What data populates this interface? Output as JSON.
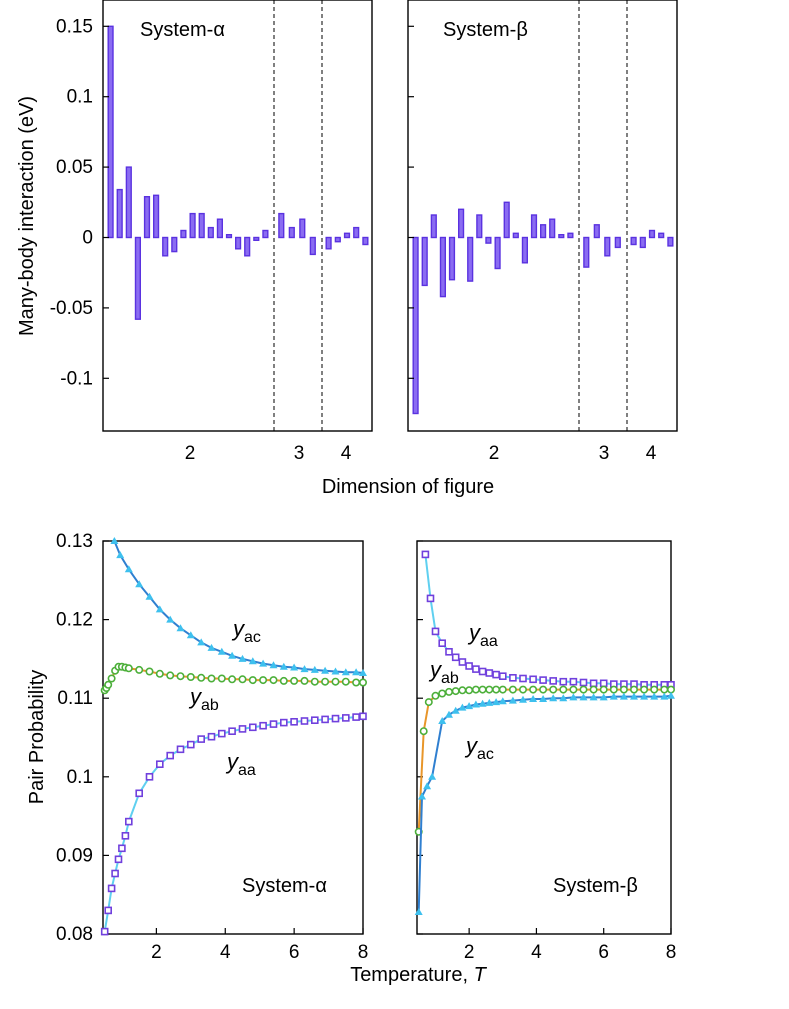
{
  "chart_data": [
    {
      "type": "bar",
      "panel": "System-α",
      "label": "System-α",
      "ylabel": "Many-body interaction (eV)",
      "xlabel": "Dimension of figure",
      "ylim": [
        -0.14,
        0.17
      ],
      "yticks": [
        "0.15",
        "0.1",
        "0.05",
        "0",
        "-0.05",
        "-0.1"
      ],
      "yticks_values": [
        0.15,
        0.1,
        0.05,
        0,
        -0.05,
        -0.1
      ],
      "xticks": [
        "2",
        "3",
        "4"
      ],
      "groups": [
        {
          "label": "2",
          "values": [
            0.15,
            0.034,
            0.05,
            -0.058,
            0.029,
            0.03,
            -0.013,
            -0.01,
            0.005,
            0.017,
            0.017,
            0.007,
            0.013,
            0.002,
            -0.008,
            -0.013,
            -0.002,
            0.005
          ]
        },
        {
          "label": "3",
          "values": [
            0.017,
            0.007,
            0.013,
            -0.012
          ]
        },
        {
          "label": "4",
          "values": [
            -0.008,
            -0.003,
            0.003,
            0.007,
            -0.005
          ]
        }
      ]
    },
    {
      "type": "bar",
      "panel": "System-β",
      "label": "System-β",
      "ylim": [
        -0.14,
        0.17
      ],
      "xticks": [
        "2",
        "3",
        "4"
      ],
      "groups": [
        {
          "label": "2",
          "values": [
            -0.125,
            -0.034,
            0.016,
            -0.042,
            -0.03,
            0.02,
            -0.031,
            0.016,
            -0.004,
            -0.022,
            0.025,
            0.003,
            -0.018,
            0.016,
            0.009,
            0.013,
            0.002,
            0.003
          ]
        },
        {
          "label": "3",
          "values": [
            -0.021,
            0.009,
            -0.013,
            -0.007
          ]
        },
        {
          "label": "4",
          "values": [
            -0.005,
            -0.007,
            0.005,
            0.003,
            -0.006
          ]
        }
      ]
    },
    {
      "type": "line",
      "panel": "System-α",
      "label": "System-α",
      "ylabel": "Pair Probability",
      "xlabel": "Temperature, ",
      "xlabel_var": "T",
      "xlim": [
        0.45,
        8.0
      ],
      "ylim": [
        0.08,
        0.13
      ],
      "yticks": [
        "0.13",
        "0.12",
        "0.11",
        "0.1",
        "0.09",
        "0.08"
      ],
      "yticks_values": [
        0.13,
        0.12,
        0.11,
        0.1,
        0.09,
        0.08
      ],
      "xticks": [
        "2",
        "4",
        "6",
        "8"
      ],
      "xticks_values": [
        2,
        4,
        6,
        8
      ],
      "series": [
        {
          "name": "y_ac",
          "sym": "y",
          "sub": "ac",
          "line_color": "#2f7fd0",
          "marker": "triangle",
          "marker_color": "#3ec0ee",
          "x": [
            0.78,
            0.95,
            1.2,
            1.5,
            1.8,
            2.1,
            2.4,
            2.7,
            3.0,
            3.3,
            3.6,
            3.9,
            4.2,
            4.5,
            4.8,
            5.1,
            5.4,
            5.7,
            6.0,
            6.3,
            6.6,
            6.9,
            7.2,
            7.5,
            7.8,
            8.0
          ],
          "y": [
            0.13,
            0.1282,
            0.1264,
            0.1245,
            0.1229,
            0.1213,
            0.12,
            0.1189,
            0.118,
            0.1171,
            0.1164,
            0.1159,
            0.1154,
            0.115,
            0.1147,
            0.1144,
            0.1142,
            0.114,
            0.1139,
            0.1137,
            0.1136,
            0.1135,
            0.1134,
            0.1133,
            0.1133,
            0.1132
          ]
        },
        {
          "name": "y_ab",
          "sym": "y",
          "sub": "ab",
          "line_color": "#e8962a",
          "marker": "circle",
          "marker_color": "#4caf3a",
          "x": [
            0.5,
            0.55,
            0.6,
            0.7,
            0.8,
            0.9,
            1.0,
            1.1,
            1.2,
            1.5,
            1.8,
            2.1,
            2.4,
            2.7,
            3.0,
            3.3,
            3.6,
            3.9,
            4.2,
            4.5,
            4.8,
            5.1,
            5.4,
            5.7,
            6.0,
            6.3,
            6.6,
            6.9,
            7.2,
            7.5,
            7.8,
            8.0
          ],
          "y": [
            0.111,
            0.1113,
            0.1117,
            0.1125,
            0.1135,
            0.114,
            0.114,
            0.1139,
            0.1138,
            0.1136,
            0.1134,
            0.1131,
            0.1129,
            0.1128,
            0.1127,
            0.1126,
            0.1125,
            0.1125,
            0.1124,
            0.1124,
            0.1123,
            0.1123,
            0.1123,
            0.1122,
            0.1122,
            0.1122,
            0.1121,
            0.1121,
            0.1121,
            0.1121,
            0.112,
            0.112
          ]
        },
        {
          "name": "y_aa",
          "sym": "y",
          "sub": "aa",
          "line_color": "#5fd0f0",
          "marker": "square",
          "marker_color": "#7040dd",
          "x": [
            0.5,
            0.6,
            0.7,
            0.8,
            0.9,
            1.0,
            1.1,
            1.2,
            1.5,
            1.8,
            2.1,
            2.4,
            2.7,
            3.0,
            3.3,
            3.6,
            3.9,
            4.2,
            4.5,
            4.8,
            5.1,
            5.4,
            5.7,
            6.0,
            6.3,
            6.6,
            6.9,
            7.2,
            7.5,
            7.8,
            8.0
          ],
          "y": [
            0.0803,
            0.083,
            0.0858,
            0.0877,
            0.0895,
            0.0909,
            0.0925,
            0.0943,
            0.0979,
            0.1,
            0.1016,
            0.1027,
            0.1035,
            0.1041,
            0.1048,
            0.1051,
            0.1055,
            0.1058,
            0.1061,
            0.1063,
            0.1065,
            0.1067,
            0.1069,
            0.107,
            0.1071,
            0.1072,
            0.1073,
            0.1074,
            0.1075,
            0.1076,
            0.1077
          ]
        }
      ]
    },
    {
      "type": "line",
      "panel": "System-β",
      "label": "System-β",
      "xlim": [
        0.45,
        8.0
      ],
      "ylim": [
        0.08,
        0.13
      ],
      "xticks": [
        "2",
        "4",
        "6",
        "8"
      ],
      "xticks_values": [
        2,
        4,
        6,
        8
      ],
      "series": [
        {
          "name": "y_aa",
          "sym": "y",
          "sub": "aa",
          "line_color": "#5fd0f0",
          "marker": "square",
          "marker_color": "#7040dd",
          "x": [
            0.7,
            0.85,
            1.0,
            1.2,
            1.4,
            1.6,
            1.8,
            2.0,
            2.2,
            2.4,
            2.6,
            2.8,
            3.0,
            3.3,
            3.6,
            3.9,
            4.2,
            4.5,
            4.8,
            5.1,
            5.4,
            5.7,
            6.0,
            6.3,
            6.6,
            6.9,
            7.2,
            7.5,
            7.8,
            8.0
          ],
          "y": [
            0.1283,
            0.1227,
            0.1185,
            0.117,
            0.1159,
            0.1152,
            0.1146,
            0.1141,
            0.1137,
            0.1134,
            0.1132,
            0.113,
            0.1128,
            0.1126,
            0.1125,
            0.1124,
            0.1123,
            0.1122,
            0.1121,
            0.1121,
            0.112,
            0.1119,
            0.1119,
            0.1118,
            0.1118,
            0.1118,
            0.1117,
            0.1117,
            0.1117,
            0.1117
          ]
        },
        {
          "name": "y_ab",
          "sym": "y",
          "sub": "ab",
          "line_color": "#e8962a",
          "marker": "circle",
          "marker_color": "#4caf3a",
          "x": [
            0.5,
            0.65,
            0.8,
            1.0,
            1.2,
            1.4,
            1.6,
            1.8,
            2.0,
            2.2,
            2.4,
            2.6,
            2.8,
            3.0,
            3.3,
            3.6,
            3.9,
            4.2,
            4.5,
            4.8,
            5.1,
            5.4,
            5.7,
            6.0,
            6.3,
            6.6,
            6.9,
            7.2,
            7.5,
            7.8,
            8.0
          ],
          "y": [
            0.093,
            0.1058,
            0.1095,
            0.1103,
            0.1106,
            0.1108,
            0.1109,
            0.111,
            0.111,
            0.1111,
            0.1111,
            0.1111,
            0.1111,
            0.1111,
            0.1111,
            0.1111,
            0.1111,
            0.1111,
            0.1111,
            0.1111,
            0.1111,
            0.1111,
            0.1111,
            0.1111,
            0.1111,
            0.1111,
            0.1111,
            0.1111,
            0.1111,
            0.1111,
            0.1111
          ]
        },
        {
          "name": "y_ac",
          "sym": "y",
          "sub": "ac",
          "line_color": "#2f7fd0",
          "marker": "triangle",
          "marker_color": "#3ec0ee",
          "x": [
            0.5,
            0.6,
            0.75,
            0.9,
            1.2,
            1.4,
            1.6,
            1.8,
            2.0,
            2.2,
            2.4,
            2.6,
            2.8,
            3.0,
            3.3,
            3.6,
            3.9,
            4.2,
            4.5,
            4.8,
            5.1,
            5.4,
            5.7,
            6.0,
            6.3,
            6.6,
            6.9,
            7.2,
            7.5,
            7.8,
            8.0
          ],
          "y": [
            0.0828,
            0.0975,
            0.0988,
            0.1,
            0.1071,
            0.1079,
            0.1084,
            0.1088,
            0.109,
            0.1092,
            0.1093,
            0.1094,
            0.1095,
            0.1096,
            0.1097,
            0.1098,
            0.1099,
            0.1099,
            0.11,
            0.11,
            0.1101,
            0.1101,
            0.1101,
            0.1101,
            0.1102,
            0.1102,
            0.1102,
            0.1102,
            0.1102,
            0.1102,
            0.1103
          ]
        }
      ]
    }
  ]
}
